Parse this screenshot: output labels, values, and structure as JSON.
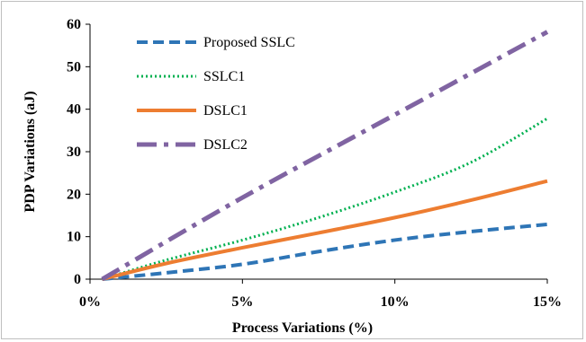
{
  "chart_data": {
    "type": "line",
    "xlabel": "Process Variations (%)",
    "ylabel": "PDP Variations (aJ)",
    "xlim": [
      0,
      15
    ],
    "ylim": [
      0,
      60
    ],
    "x_ticks": [
      0,
      5,
      10,
      15
    ],
    "x_tick_labels": [
      "0%",
      "5%",
      "10%",
      "15%"
    ],
    "y_ticks": [
      0,
      10,
      20,
      30,
      40,
      50,
      60
    ],
    "y_tick_labels": [
      "0",
      "10",
      "20",
      "30",
      "40",
      "50",
      "60"
    ],
    "grid": false,
    "legend_position": "top-left",
    "series": [
      {
        "name": "Proposed SSLC",
        "color": "#2e75b6",
        "dash": "dashed",
        "x": [
          0.4,
          2.5,
          5,
          7.5,
          10,
          12.5,
          15
        ],
        "y": [
          0,
          1.5,
          3.5,
          6.5,
          9.2,
          11.2,
          12.9
        ]
      },
      {
        "name": "SSLC1",
        "color": "#00b050",
        "dash": "dotted",
        "x": [
          0.4,
          2.5,
          5,
          7.5,
          10,
          12.5,
          15
        ],
        "y": [
          0,
          4.5,
          9.2,
          14.5,
          20.5,
          27.5,
          37.8
        ]
      },
      {
        "name": "DSLC1",
        "color": "#ed7d31",
        "dash": "solid",
        "x": [
          0.4,
          2.5,
          5,
          7.5,
          10,
          12.5,
          15
        ],
        "y": [
          0,
          3.7,
          7.4,
          10.9,
          14.5,
          18.6,
          23.1
        ]
      },
      {
        "name": "DSLC2",
        "color": "#8064a2",
        "dash": "dashdot",
        "x": [
          0.4,
          5,
          10,
          15
        ],
        "y": [
          0,
          19.2,
          38.7,
          58.2
        ]
      }
    ]
  }
}
